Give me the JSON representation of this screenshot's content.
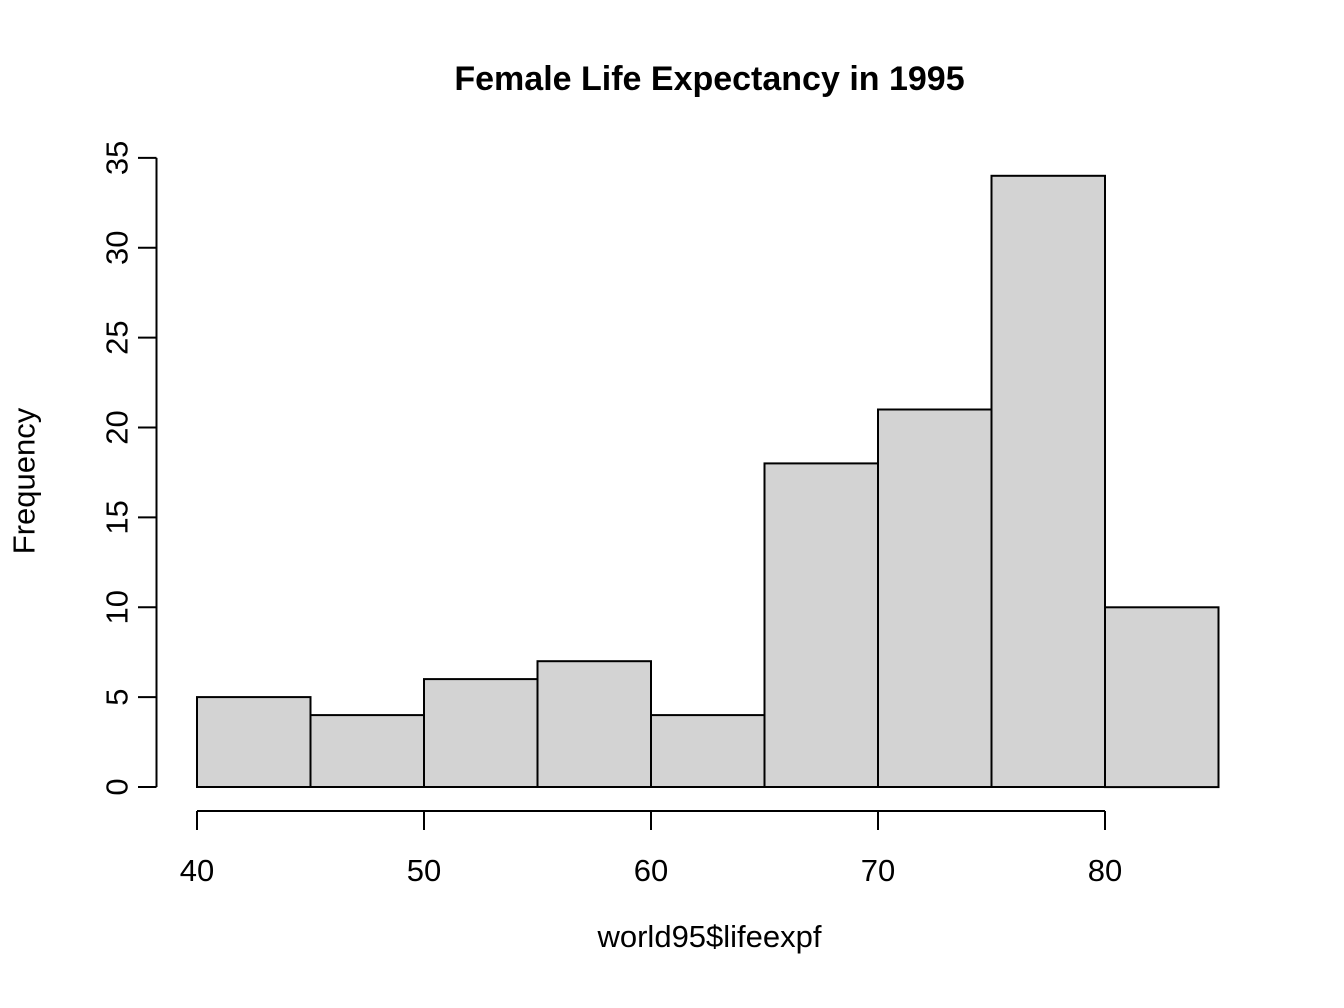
{
  "chart_data": {
    "type": "bar",
    "subtype": "histogram",
    "title": "Female Life Expectancy in 1995",
    "xlabel": "world95$lifeexpf",
    "ylabel": "Frequency",
    "bin_edges": [
      40,
      45,
      50,
      55,
      60,
      65,
      70,
      75,
      80,
      85
    ],
    "counts": [
      5,
      4,
      6,
      7,
      4,
      18,
      21,
      34,
      10
    ],
    "x_ticks": [
      40,
      50,
      60,
      70,
      80
    ],
    "y_ticks": [
      0,
      5,
      10,
      15,
      20,
      25,
      30,
      35
    ],
    "xlim": [
      40,
      85
    ],
    "ylim": [
      0,
      35
    ],
    "grid": false,
    "legend": "none",
    "colors": {
      "bar_fill": "#d3d3d3",
      "bar_stroke": "#000000",
      "axis": "#000000",
      "text": "#000000",
      "background": "#ffffff"
    }
  }
}
